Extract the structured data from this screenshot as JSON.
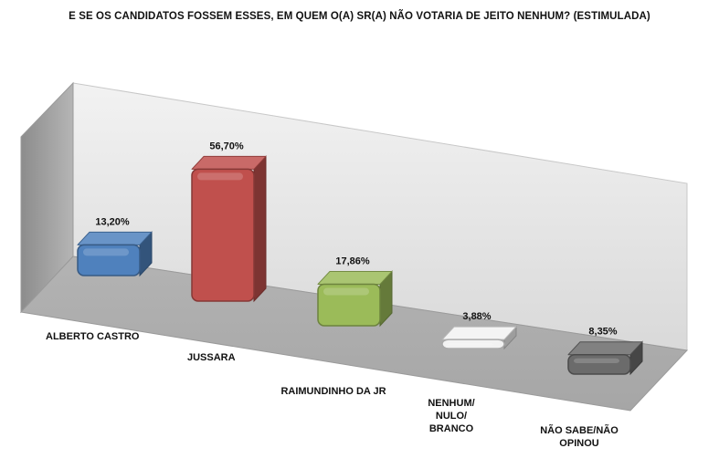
{
  "chart_data": {
    "type": "bar",
    "title": "E SE OS CANDIDATOS FOSSEM ESSES, EM QUEM O(A) SR(A) NÃO VOTARIA DE JEITO NENHUM? (ESTIMULADA)",
    "categories": [
      "ALBERTO CASTRO",
      "JUSSARA",
      "RAIMUNDINHO DA JR",
      "NENHUM/ NULO/ BRANCO",
      "NÃO SABE/NÃO OPINOU"
    ],
    "category_lines": [
      [
        "ALBERTO CASTRO"
      ],
      [
        "JUSSARA"
      ],
      [
        "RAIMUNDINHO DA JR"
      ],
      [
        "NENHUM/",
        "NULO/",
        "BRANCO"
      ],
      [
        "NÃO SABE/NÃO",
        "OPINOU"
      ]
    ],
    "values": [
      13.2,
      56.7,
      17.86,
      3.88,
      8.35
    ],
    "value_labels": [
      "13,20%",
      "56,70%",
      "17,86%",
      "3,88%",
      "8,35%"
    ],
    "colors": [
      "#4f81bd",
      "#c0504d",
      "#9bbb59",
      "#f2f2f2",
      "#6b6b6b"
    ],
    "ylim": [
      0,
      60
    ],
    "legend": "none",
    "grid": false
  }
}
